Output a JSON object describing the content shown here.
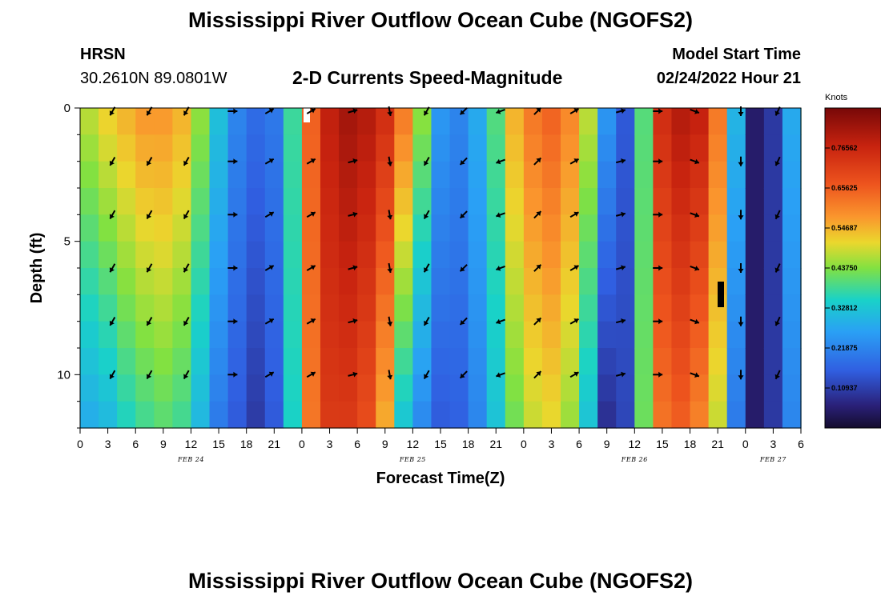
{
  "header": {
    "title": "Mississippi River Outflow Ocean Cube (NGOFS2)",
    "station_name": "HRSN",
    "station_coords": "30.2610N  89.0801W",
    "plot_type": "2-D Currents Speed-Magnitude",
    "model_start_label": "Model Start Time",
    "model_start_value": "02/24/2022 Hour 21"
  },
  "footer": {
    "title": "Mississippi River Outflow Ocean Cube (NGOFS2)"
  },
  "chart_data": {
    "type": "heatmap",
    "title": "2-D Currents Speed-Magnitude",
    "xlabel": "Forecast Time(Z)",
    "ylabel": "Depth (ft)",
    "x_tick_labels": [
      "0",
      "3",
      "6",
      "9",
      "12",
      "15",
      "18",
      "21",
      "0",
      "3",
      "6",
      "9",
      "12",
      "15",
      "18",
      "21",
      "0",
      "3",
      "6",
      "9",
      "12",
      "15",
      "18",
      "21",
      "0",
      "3",
      "6"
    ],
    "x_range_hours": [
      0,
      78
    ],
    "date_labels": [
      {
        "text": "FEB 24",
        "hour": 12
      },
      {
        "text": "FEB 25",
        "hour": 36
      },
      {
        "text": "FEB 26",
        "hour": 60
      },
      {
        "text": "FEB 27",
        "hour": 75
      }
    ],
    "y_tick_labels": [
      "0",
      "5",
      "10"
    ],
    "y_range_ft": [
      0,
      12
    ],
    "colorbar": {
      "units": "Knots",
      "range": [
        0,
        0.875
      ],
      "tick_values": [
        0.10937,
        0.21875,
        0.32812,
        0.4375,
        0.54687,
        0.65625,
        0.76562
      ],
      "tick_labels": [
        "0.10937",
        "0.21875",
        "0.32812",
        "0.43750",
        "0.54687",
        "0.65625",
        "0.76562"
      ]
    },
    "time_hours": [
      0,
      2,
      4,
      6,
      8,
      10,
      12,
      14,
      16,
      18,
      20,
      22,
      24,
      26,
      28,
      30,
      32,
      34,
      36,
      38,
      40,
      42,
      44,
      46,
      48,
      50,
      52,
      54,
      56,
      58,
      60,
      62,
      64,
      66,
      68,
      70,
      72,
      74,
      76,
      78
    ],
    "surface_speed_knots": [
      0.48,
      0.52,
      0.55,
      0.58,
      0.58,
      0.55,
      0.45,
      0.32,
      0.22,
      0.18,
      0.2,
      0.38,
      0.65,
      0.78,
      0.82,
      0.8,
      0.75,
      0.62,
      0.45,
      0.25,
      0.22,
      0.28,
      0.4,
      0.55,
      0.62,
      0.65,
      0.6,
      0.48,
      0.25,
      0.15,
      0.4,
      0.75,
      0.8,
      0.78,
      0.62,
      0.3,
      0.05,
      0.1,
      0.28,
      0.42
    ],
    "bottom_speed_knots": [
      0.28,
      0.3,
      0.35,
      0.38,
      0.4,
      0.38,
      0.3,
      0.2,
      0.15,
      0.1,
      0.15,
      0.35,
      0.62,
      0.72,
      0.72,
      0.68,
      0.55,
      0.32,
      0.22,
      0.15,
      0.16,
      0.22,
      0.32,
      0.42,
      0.48,
      0.5,
      0.45,
      0.32,
      0.08,
      0.12,
      0.42,
      0.62,
      0.65,
      0.6,
      0.48,
      0.2,
      0.05,
      0.1,
      0.22,
      0.3
    ],
    "vector_times": [
      3.5,
      7.5,
      11.5,
      16.5,
      20.5,
      25,
      29.5,
      33.5,
      37.5,
      41.5,
      45.5,
      49.5,
      53.5,
      58.5,
      62.5,
      66.5,
      71.5,
      75.5
    ],
    "vector_depths": [
      0,
      2,
      4,
      6,
      8,
      10
    ],
    "vector_directions_deg": [
      210,
      210,
      210,
      90,
      60,
      60,
      75,
      170,
      210,
      225,
      250,
      45,
      60,
      75,
      90,
      110,
      180,
      205
    ]
  }
}
